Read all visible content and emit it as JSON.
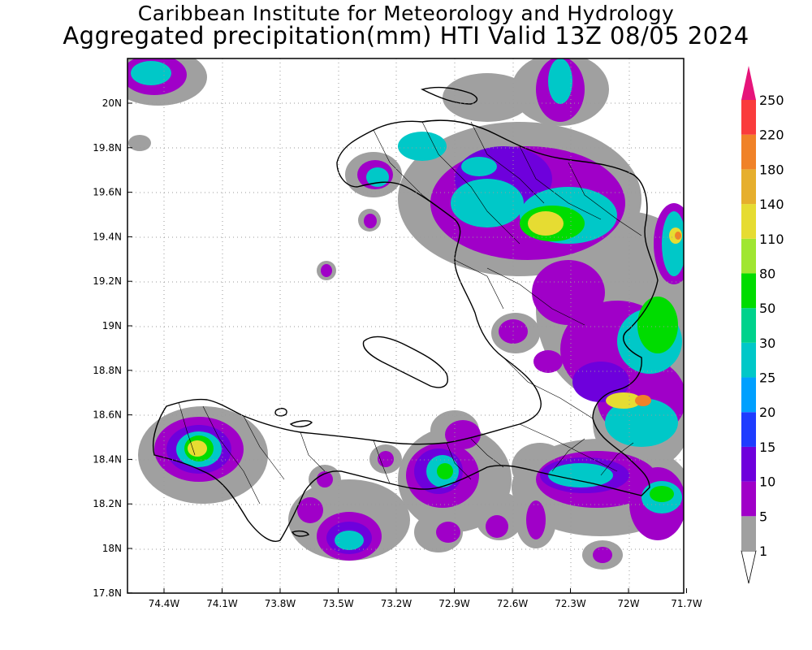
{
  "header": {
    "institution": "Caribbean Institute for Meteorology and Hydrology",
    "product": "Aggregated precipitation(mm) HTI Valid 13Z 08/05 2024"
  },
  "map": {
    "region": "Haiti",
    "lat_range": [
      17.8,
      20.2
    ],
    "lon_range": [
      -74.6,
      -71.6
    ],
    "lat_ticks": [
      "20N",
      "19.8N",
      "19.6N",
      "19.4N",
      "19.2N",
      "19N",
      "18.8N",
      "18.6N",
      "18.4N",
      "18.2N",
      "18N",
      "17.8N"
    ],
    "lon_ticks": [
      "74.4W",
      "74.1W",
      "73.8W",
      "73.5W",
      "73.2W",
      "72.9W",
      "72.6W",
      "72.3W",
      "72W",
      "71.7W"
    ]
  },
  "colorbar": {
    "levels": [
      {
        "label": "1",
        "color": "#ffffff"
      },
      {
        "label": "5",
        "color": "#a0a0a0"
      },
      {
        "label": "10",
        "color": "#a000c8"
      },
      {
        "label": "15",
        "color": "#6e00dc"
      },
      {
        "label": "20",
        "color": "#1e3cff"
      },
      {
        "label": "25",
        "color": "#00a0ff"
      },
      {
        "label": "30",
        "color": "#00c8c8"
      },
      {
        "label": "50",
        "color": "#00d28c"
      },
      {
        "label": "80",
        "color": "#00dc00"
      },
      {
        "label": "110",
        "color": "#a0e632"
      },
      {
        "label": "140",
        "color": "#e6dc32"
      },
      {
        "label": "180",
        "color": "#e6af2d"
      },
      {
        "label": "220",
        "color": "#f08228"
      },
      {
        "label": "250",
        "color": "#fa3c3c"
      }
    ],
    "top_color": "#e6147a"
  }
}
